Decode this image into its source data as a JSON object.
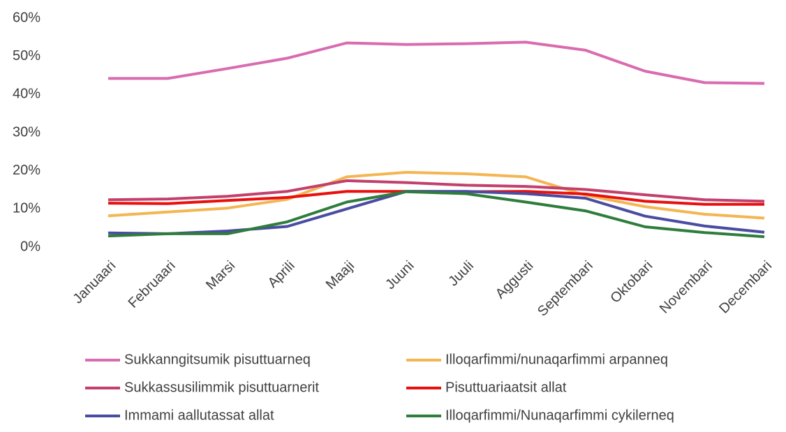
{
  "chart_data": {
    "type": "line",
    "categories": [
      "Januaari",
      "Februaari",
      "Marsi",
      "Aprili",
      "Maaji",
      "Juuni",
      "Juuli",
      "Aggusti",
      "Septembari",
      "Oktobari",
      "Novembari",
      "Decembari"
    ],
    "series": [
      {
        "name": "Sukkanngitsumik pisuttuarneq",
        "color": "#d96bb0",
        "values": [
          44.2,
          44.2,
          46.8,
          49.5,
          53.5,
          53.1,
          53.3,
          53.7,
          51.6,
          46.1,
          43.1,
          42.9
        ]
      },
      {
        "name": "Illoqarfimmi/nunaqarfimmi arpanneq",
        "color": "#f4b553",
        "values": [
          8.2,
          9.2,
          10.2,
          12.5,
          18.4,
          19.6,
          19.2,
          18.4,
          13.6,
          10.6,
          8.6,
          7.6
        ]
      },
      {
        "name": "Sukkassusilimmik pisuttuarnerit",
        "color": "#c2406b",
        "values": [
          12.4,
          12.6,
          13.3,
          14.6,
          17.4,
          16.9,
          16.2,
          15.9,
          15.1,
          13.7,
          12.4,
          12.0
        ]
      },
      {
        "name": "Pisuttuariaatsit allat",
        "color": "#e8100f",
        "values": [
          11.5,
          11.4,
          12.2,
          13.0,
          14.6,
          14.6,
          14.5,
          14.6,
          13.9,
          12.0,
          11.2,
          11.2
        ]
      },
      {
        "name": "Immami aallutassat allat",
        "color": "#4a4ca0",
        "values": [
          3.7,
          3.5,
          4.2,
          5.4,
          10.0,
          14.6,
          14.6,
          14.0,
          12.8,
          8.1,
          5.5,
          3.9
        ]
      },
      {
        "name": "Illoqarfimmi/Nunaqarfimmi cykilerneq",
        "color": "#2e7d3c",
        "values": [
          2.9,
          3.5,
          3.5,
          6.6,
          11.8,
          14.5,
          14.0,
          11.8,
          9.5,
          5.3,
          3.8,
          2.7
        ]
      }
    ],
    "ylim": [
      0,
      60
    ],
    "yticks": [
      {
        "value": 0,
        "label": "0%"
      },
      {
        "value": 10,
        "label": "10%"
      },
      {
        "value": 20,
        "label": "20%"
      },
      {
        "value": 30,
        "label": "30%"
      },
      {
        "value": 40,
        "label": "40%"
      },
      {
        "value": 50,
        "label": "50%"
      },
      {
        "value": 60,
        "label": "60%"
      }
    ],
    "grid": false,
    "legend": "bottom"
  }
}
